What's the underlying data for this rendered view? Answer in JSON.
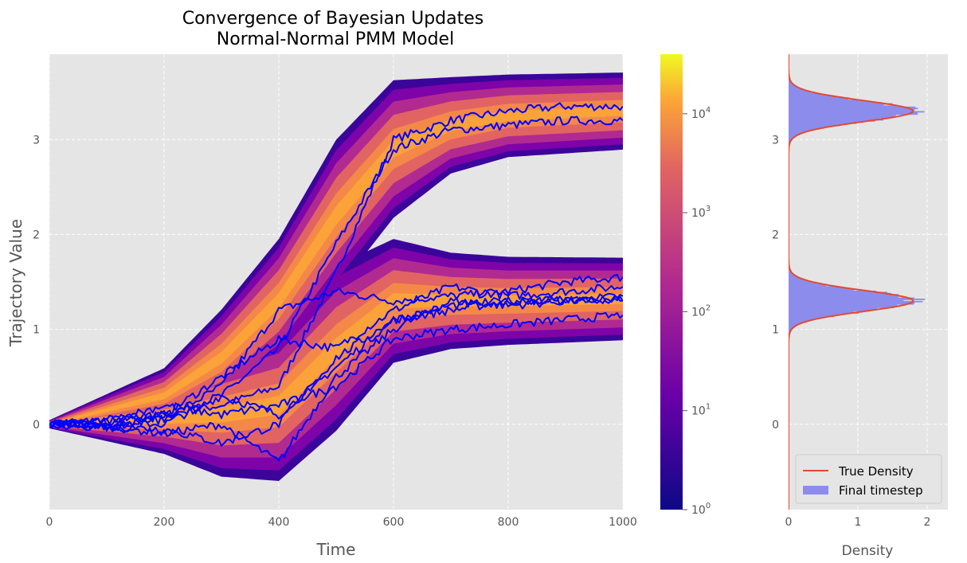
{
  "colors": {
    "panel_bg": "#e5e5e5",
    "grid": "#ffffff",
    "traj": "#0000ff",
    "true_density": "#e24a33",
    "hist_fill": "#8c8ced",
    "tick_text": "#555555"
  },
  "icons": {
    "legend_line": "line-swatch",
    "legend_patch": "patch-swatch"
  },
  "chart_data": [
    {
      "type": "heatmap",
      "title": "Convergence of Bayesian Updates\nNormal-Normal PMM Model",
      "title_lines": [
        "Convergence of Bayesian Updates",
        "Normal-Normal PMM Model"
      ],
      "xlabel": "Time",
      "ylabel": "Trajectory Value",
      "xlim": [
        0,
        1000
      ],
      "ylim": [
        -0.9,
        3.9
      ],
      "xticks": [
        0,
        200,
        400,
        600,
        800,
        1000
      ],
      "xtick_labels": [
        "0",
        "200",
        "400",
        "600",
        "800",
        "1000"
      ],
      "yticks": [
        0,
        1,
        2,
        3
      ],
      "ytick_labels": [
        "0",
        "1",
        "2",
        "3"
      ],
      "grid": true,
      "colormap": "plasma",
      "colorbar": {
        "scale": "log",
        "range": [
          1,
          40000
        ],
        "ticks": [
          1,
          10,
          100,
          1000,
          10000
        ],
        "tick_labels": [
          "10^0",
          "10^1",
          "10^2",
          "10^3",
          "10^4"
        ]
      },
      "density_bands": [
        {
          "name": "upper",
          "time": [
            0,
            200,
            300,
            400,
            500,
            600,
            700,
            800,
            1000
          ],
          "center": [
            0,
            0.3,
            0.7,
            1.3,
            2.2,
            2.9,
            3.15,
            3.25,
            3.3
          ],
          "halfwidth": [
            0.03,
            0.2,
            0.35,
            0.45,
            0.55,
            0.5,
            0.35,
            0.3,
            0.28
          ]
        },
        {
          "name": "lower",
          "time": [
            0,
            200,
            300,
            400,
            500,
            600,
            700,
            800,
            1000
          ],
          "center": [
            0,
            0.05,
            0.1,
            0.2,
            0.8,
            1.3,
            1.3,
            1.3,
            1.32
          ],
          "halfwidth": [
            0.03,
            0.25,
            0.45,
            0.55,
            0.6,
            0.45,
            0.35,
            0.32,
            0.3
          ]
        }
      ],
      "series": [
        {
          "values_time": [
            0,
            100,
            200,
            300,
            400,
            500,
            600,
            700,
            800,
            900,
            1000
          ],
          "values": [
            0,
            0.05,
            0.1,
            0.2,
            0.4,
            1.6,
            3.0,
            3.2,
            3.3,
            3.35,
            3.35
          ]
        },
        {
          "values_time": [
            0,
            100,
            200,
            300,
            400,
            500,
            600,
            700,
            800,
            900,
            1000
          ],
          "values": [
            0,
            0.02,
            0.1,
            0.3,
            0.8,
            1.9,
            2.9,
            3.1,
            3.15,
            3.2,
            3.2
          ]
        },
        {
          "values_time": [
            0,
            100,
            200,
            300,
            400,
            500,
            600,
            700,
            800,
            900,
            1000
          ],
          "values": [
            0,
            0,
            0.05,
            0.4,
            1.2,
            1.4,
            1.3,
            1.35,
            1.4,
            1.5,
            1.55
          ]
        },
        {
          "values_time": [
            0,
            100,
            200,
            300,
            400,
            500,
            600,
            700,
            800,
            900,
            1000
          ],
          "values": [
            0,
            -0.05,
            0.1,
            0.5,
            0.9,
            0.8,
            1.2,
            1.45,
            1.35,
            1.4,
            1.45
          ]
        },
        {
          "values_time": [
            0,
            100,
            200,
            300,
            400,
            500,
            600,
            700,
            800,
            900,
            1000
          ],
          "values": [
            0,
            0.02,
            0.0,
            0.3,
            0.1,
            0.6,
            1.1,
            1.2,
            1.3,
            1.3,
            1.35
          ]
        },
        {
          "values_time": [
            0,
            100,
            200,
            300,
            400,
            500,
            600,
            700,
            800,
            900,
            1000
          ],
          "values": [
            0,
            -0.02,
            -0.1,
            0.0,
            -0.4,
            0.5,
            1.0,
            1.3,
            1.25,
            1.3,
            1.3
          ]
        },
        {
          "values_time": [
            0,
            100,
            200,
            300,
            400,
            500,
            600,
            700,
            800,
            900,
            1000
          ],
          "values": [
            0,
            0.03,
            0.2,
            0.1,
            0.2,
            0.4,
            0.9,
            1.0,
            1.05,
            1.1,
            1.15
          ]
        },
        {
          "values_time": [
            0,
            100,
            200,
            300,
            400,
            500,
            600,
            700,
            800,
            900,
            1000
          ],
          "values": [
            0,
            -0.03,
            -0.05,
            -0.2,
            0.0,
            0.7,
            1.1,
            1.25,
            1.3,
            1.32,
            1.3
          ]
        }
      ]
    },
    {
      "type": "histogram",
      "xlabel": "Density",
      "xlim": [
        0,
        2.3
      ],
      "xticks": [
        0,
        1,
        2
      ],
      "xtick_labels": [
        "0",
        "1",
        "2"
      ],
      "ylim": [
        -0.9,
        3.9
      ],
      "yticks": [
        0,
        1,
        2,
        3
      ],
      "ytick_labels": [
        "0",
        "1",
        "2",
        "3"
      ],
      "grid": true,
      "legend": {
        "placement": "lower-left",
        "entries": [
          "True Density",
          "Final timestep"
        ]
      },
      "true_density": {
        "components": [
          {
            "mean": 3.3,
            "sd": 0.11,
            "peak": 1.8
          },
          {
            "mean": 1.3,
            "sd": 0.11,
            "peak": 1.8
          }
        ]
      },
      "hist": {
        "y": [
          3.0,
          3.1,
          3.2,
          3.25,
          3.3,
          3.35,
          3.4,
          3.5,
          3.6,
          1.0,
          1.1,
          1.2,
          1.25,
          1.3,
          1.35,
          1.4,
          1.5,
          1.6
        ],
        "density": [
          0.15,
          0.6,
          1.4,
          1.7,
          1.75,
          1.6,
          1.2,
          0.4,
          0.1,
          0.15,
          0.6,
          1.35,
          1.75,
          1.9,
          1.7,
          1.2,
          0.45,
          0.1
        ]
      }
    }
  ]
}
